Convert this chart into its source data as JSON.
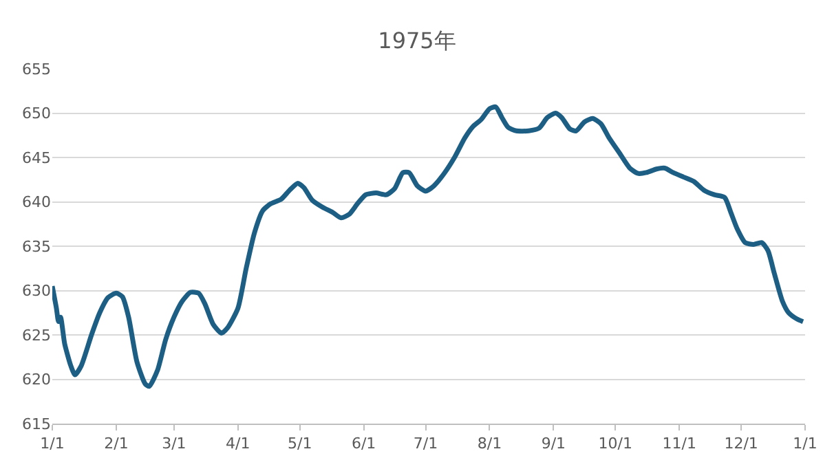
{
  "chart_data": {
    "type": "line",
    "title": "1975年",
    "x": [
      "1975-01-01",
      "1975-01-03",
      "1975-01-04",
      "1975-01-05",
      "1975-01-07",
      "1975-01-10",
      "1975-01-12",
      "1975-01-15",
      "1975-01-20",
      "1975-01-24",
      "1975-01-28",
      "1975-02-01",
      "1975-02-04",
      "1975-02-07",
      "1975-02-11",
      "1975-02-15",
      "1975-02-17",
      "1975-02-21",
      "1975-02-25",
      "1975-03-01",
      "1975-03-05",
      "1975-03-09",
      "1975-03-13",
      "1975-03-16",
      "1975-03-20",
      "1975-03-24",
      "1975-03-27",
      "1975-04-01",
      "1975-04-05",
      "1975-04-09",
      "1975-04-13",
      "1975-04-17",
      "1975-04-22",
      "1975-04-26",
      "1975-04-30",
      "1975-05-03",
      "1975-05-07",
      "1975-05-12",
      "1975-05-17",
      "1975-05-21",
      "1975-05-25",
      "1975-05-29",
      "1975-06-02",
      "1975-06-07",
      "1975-06-12",
      "1975-06-16",
      "1975-06-20",
      "1975-06-23",
      "1975-06-27",
      "1975-07-01",
      "1975-07-05",
      "1975-07-10",
      "1975-07-15",
      "1975-07-20",
      "1975-07-24",
      "1975-07-28",
      "1975-08-01",
      "1975-08-04",
      "1975-08-07",
      "1975-08-10",
      "1975-08-14",
      "1975-08-20",
      "1975-08-25",
      "1975-08-29",
      "1975-09-02",
      "1975-09-05",
      "1975-09-09",
      "1975-09-12",
      "1975-09-16",
      "1975-09-20",
      "1975-09-24",
      "1975-09-28",
      "1975-10-03",
      "1975-10-08",
      "1975-10-12",
      "1975-10-16",
      "1975-10-21",
      "1975-10-25",
      "1975-10-29",
      "1975-11-03",
      "1975-11-08",
      "1975-11-13",
      "1975-11-18",
      "1975-11-23",
      "1975-11-26",
      "1975-11-29",
      "1975-12-03",
      "1975-12-07",
      "1975-12-11",
      "1975-12-14",
      "1975-12-17",
      "1975-12-21",
      "1975-12-24",
      "1975-12-28",
      "1975-12-31"
    ],
    "series": [
      {
        "color": "#1d5f84",
        "values": [
          630.5,
          628,
          626.5,
          627,
          624,
          621.5,
          620.5,
          621.5,
          625,
          627.5,
          629.2,
          629.7,
          629.3,
          627,
          622,
          619.5,
          619.2,
          621,
          624.5,
          627,
          628.8,
          629.8,
          629.7,
          628.5,
          626.2,
          625.2,
          625.8,
          628,
          632.5,
          636.5,
          639,
          639.8,
          640.3,
          641.3,
          642.1,
          641.6,
          640.2,
          639.4,
          638.8,
          638.2,
          638.6,
          639.8,
          640.8,
          641,
          640.8,
          641.5,
          643.3,
          643.3,
          641.8,
          641.2,
          641.8,
          643.2,
          645,
          647.2,
          648.5,
          649.3,
          650.5,
          650.7,
          649.5,
          648.4,
          648,
          648,
          648.3,
          649.5,
          650,
          649.5,
          648.2,
          648,
          649,
          649.4,
          648.8,
          647.2,
          645.5,
          643.8,
          643.2,
          643.3,
          643.7,
          643.8,
          643.3,
          642.8,
          642.3,
          641.3,
          640.8,
          640.5,
          638.8,
          637,
          635.4,
          635.2,
          635.4,
          634.5,
          632,
          628.8,
          627.5,
          626.8,
          626.5
        ]
      }
    ],
    "xlim": [
      "1975-01-01",
      "1976-01-01"
    ],
    "xticks": [
      {
        "value": "1975-01-01",
        "label": "1/1"
      },
      {
        "value": "1975-02-01",
        "label": "2/1"
      },
      {
        "value": "1975-03-01",
        "label": "3/1"
      },
      {
        "value": "1975-04-01",
        "label": "4/1"
      },
      {
        "value": "1975-05-01",
        "label": "5/1"
      },
      {
        "value": "1975-06-01",
        "label": "6/1"
      },
      {
        "value": "1975-07-01",
        "label": "7/1"
      },
      {
        "value": "1975-08-01",
        "label": "8/1"
      },
      {
        "value": "1975-09-01",
        "label": "9/1"
      },
      {
        "value": "1975-10-01",
        "label": "10/1"
      },
      {
        "value": "1975-11-01",
        "label": "11/1"
      },
      {
        "value": "1975-12-01",
        "label": "12/1"
      },
      {
        "value": "1976-01-01",
        "label": "1/1"
      }
    ],
    "ylim": [
      615,
      655
    ],
    "yticks": [
      615,
      620,
      625,
      630,
      635,
      640,
      645,
      650,
      655
    ],
    "grid": "y",
    "legend": false,
    "marker": "none",
    "line_style": "solid"
  }
}
